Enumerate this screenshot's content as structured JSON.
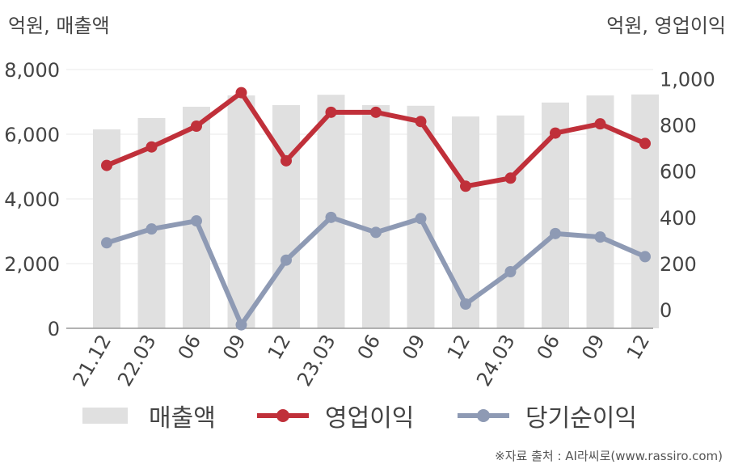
{
  "units": {
    "left": "억원, 매출액",
    "right": "억원, 영업이익"
  },
  "source": "※자료 출처 : AI라씨로(www.rassiro.com)",
  "colors": {
    "revenue": "#e0e0e0",
    "op_income": "#c0303a",
    "net_income": "#8e9ab4",
    "grid": "#e8e8e8",
    "axis": "#999999"
  },
  "chart_data": {
    "type": "bar",
    "categories": [
      "21.12",
      "22.03",
      "06",
      "09",
      "12",
      "23.03",
      "06",
      "09",
      "12",
      "24.03",
      "06",
      "09",
      "12"
    ],
    "y_left": {
      "ylim": [
        0,
        8000
      ],
      "ticks": [
        "0",
        "2,000",
        "4,000",
        "6,000",
        "8,000"
      ],
      "tick_values": [
        0,
        2000,
        4000,
        6000,
        8000
      ]
    },
    "y_right": {
      "ylim": [
        -80,
        1040
      ],
      "ticks": [
        "0",
        "200",
        "400",
        "600",
        "800",
        "1,000"
      ],
      "tick_values": [
        0,
        200,
        400,
        600,
        800,
        1000
      ]
    },
    "grid": true,
    "legend_position": "bottom",
    "series": [
      {
        "name": "매출액",
        "type": "bar",
        "axis": "left",
        "values": [
          6150,
          6500,
          6850,
          7200,
          6900,
          7220,
          6900,
          6880,
          6550,
          6580,
          6980,
          7200,
          7230
        ]
      },
      {
        "name": "영업이익",
        "type": "line",
        "axis": "right",
        "values": [
          625,
          705,
          795,
          940,
          645,
          855,
          855,
          815,
          535,
          570,
          765,
          805,
          720
        ]
      },
      {
        "name": "당기순이익",
        "type": "line",
        "axis": "right",
        "values": [
          290,
          350,
          385,
          -65,
          215,
          400,
          335,
          395,
          25,
          165,
          330,
          315,
          230
        ]
      }
    ]
  }
}
